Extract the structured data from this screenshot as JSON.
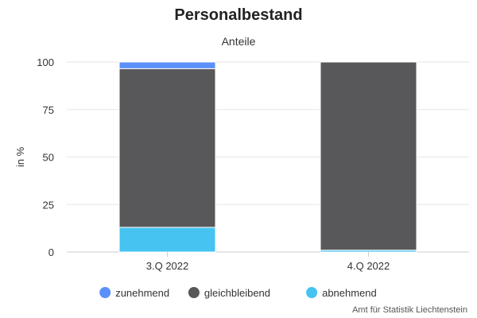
{
  "chart_data": {
    "type": "bar",
    "stacked": true,
    "title": "Personalbestand",
    "subtitle": "Anteile",
    "xlabel": "",
    "ylabel": "in %",
    "categories": [
      "3.Q 2022",
      "4.Q 2022"
    ],
    "series": [
      {
        "name": "zunehmend",
        "color": "#5b8ff9",
        "values": [
          3.5,
          0
        ]
      },
      {
        "name": "gleichbleibend",
        "color": "#58585a",
        "values": [
          83.5,
          99
        ]
      },
      {
        "name": "abnehmend",
        "color": "#46c3f0",
        "values": [
          13,
          1
        ]
      }
    ],
    "ylim": [
      0,
      100
    ],
    "yticks": [
      0,
      25,
      50,
      75,
      100
    ],
    "grid": true,
    "legend_position": "bottom-center"
  },
  "credit": "Amt für Statistik Liechtenstein"
}
